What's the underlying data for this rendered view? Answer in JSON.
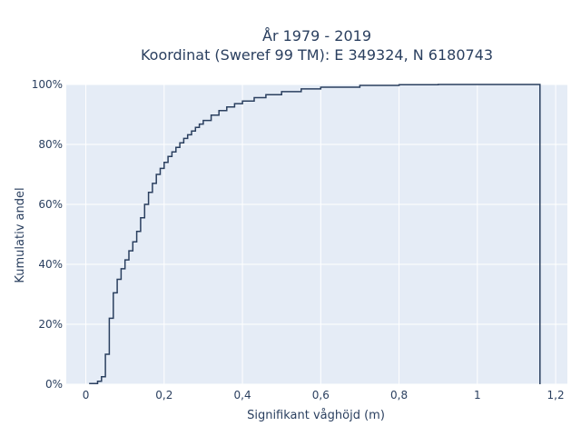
{
  "chart_data": {
    "type": "line",
    "subtype": "ecdf-step",
    "title_line1": "År 1979 - 2019",
    "title_line2": "Koordinat (Sweref 99 TM): E 349324, N 6180743",
    "xlabel": "Signifikant våghöjd (m)",
    "ylabel": "Kumulativ andel",
    "xlim": [
      -0.05,
      1.23
    ],
    "ylim": [
      0,
      1
    ],
    "x_ticks": [
      0,
      0.2,
      0.4,
      0.6,
      0.8,
      1.0,
      1.2
    ],
    "x_tick_labels": [
      "0",
      "0,2",
      "0,4",
      "0,6",
      "0,8",
      "1",
      "1,2"
    ],
    "y_ticks": [
      0,
      0.2,
      0.4,
      0.6,
      0.8,
      1.0
    ],
    "y_tick_labels": [
      "0%",
      "20%",
      "40%",
      "60%",
      "80%",
      "100%"
    ],
    "grid": true,
    "series": [
      {
        "x": [
          0.01,
          0.03,
          0.04,
          0.05,
          0.06,
          0.07,
          0.08,
          0.09,
          0.1,
          0.11,
          0.12,
          0.13,
          0.14,
          0.15,
          0.16,
          0.17,
          0.18,
          0.19,
          0.2,
          0.21,
          0.22,
          0.23,
          0.24,
          0.25,
          0.26,
          0.27,
          0.28,
          0.29,
          0.3,
          0.32,
          0.34,
          0.36,
          0.38,
          0.4,
          0.43,
          0.46,
          0.5,
          0.55,
          0.6,
          0.7,
          0.8,
          0.9,
          1.0,
          1.1,
          1.16
        ],
        "y": [
          0.002,
          0.01,
          0.025,
          0.1,
          0.22,
          0.305,
          0.35,
          0.385,
          0.415,
          0.445,
          0.475,
          0.51,
          0.555,
          0.6,
          0.64,
          0.67,
          0.7,
          0.72,
          0.74,
          0.76,
          0.775,
          0.79,
          0.805,
          0.82,
          0.832,
          0.845,
          0.857,
          0.868,
          0.88,
          0.898,
          0.913,
          0.925,
          0.936,
          0.945,
          0.956,
          0.966,
          0.976,
          0.985,
          0.991,
          0.997,
          0.999,
          1.0,
          1.0,
          1.0,
          1.0
        ]
      }
    ],
    "colors": {
      "plot_bg": "#e5ecf6",
      "grid": "#ffffff",
      "line": "#2a3f5f"
    }
  }
}
